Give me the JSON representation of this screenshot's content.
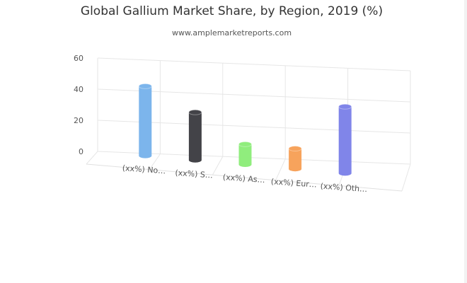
{
  "chart_data": {
    "type": "bar",
    "title": "Global Gallium Market Share, by Region, 2019 (%)",
    "subtitle": "www.amplemarketreports.com",
    "categories": [
      "(xx%) No…",
      "(xx%) S…",
      "(xx%) As…",
      "(xx%) Eur…",
      "(xx%) Oth…"
    ],
    "values": [
      48,
      33,
      14,
      14,
      46
    ],
    "colors": [
      "#7cb5ec",
      "#434348",
      "#90ed7d",
      "#f7a35c",
      "#8085e9"
    ],
    "ylim": [
      0,
      60
    ],
    "yticks": [
      0,
      20,
      40,
      60
    ],
    "grid": true,
    "legend": "none",
    "style": "3d-cylinder"
  }
}
